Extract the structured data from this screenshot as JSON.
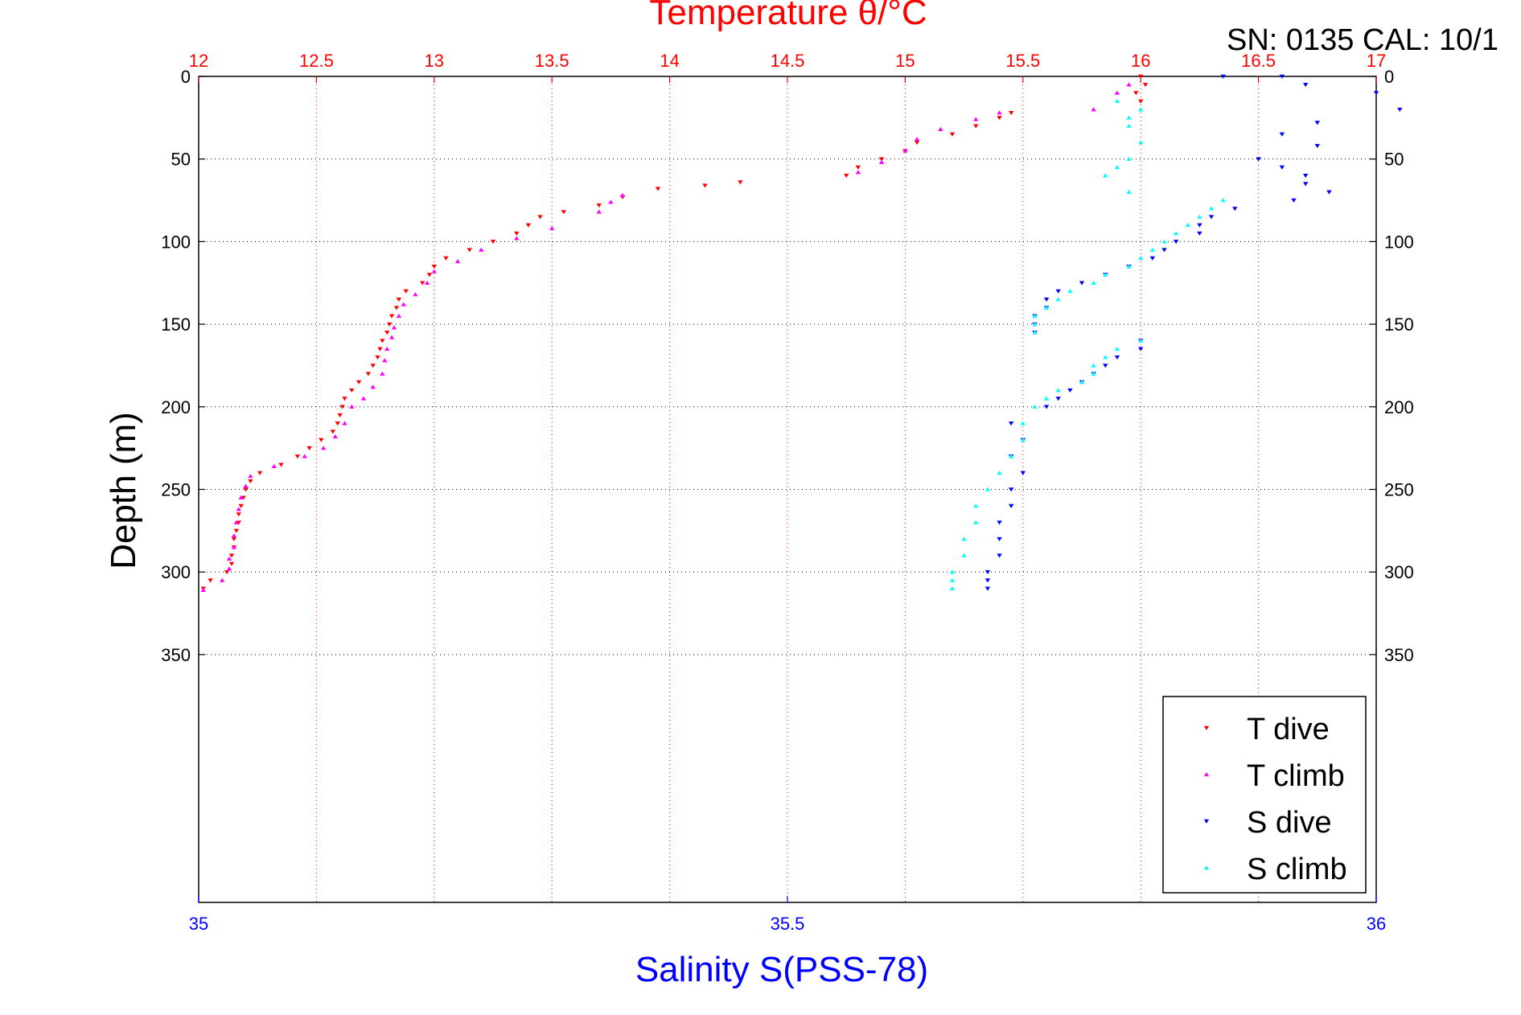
{
  "chart_data": {
    "type": "scatter",
    "title": "Temperature θ/°C",
    "corner_text": "SN: 0135  CAL: 10/1",
    "xlabel_top": "Temperature θ/°C",
    "xlabel_bottom": "Salinity S(PSS-78)",
    "ylabel": "Depth (m)",
    "x_top_range": [
      12,
      17
    ],
    "x_top_ticks": [
      "12",
      "12.5",
      "13",
      "13.5",
      "14",
      "14.5",
      "15",
      "15.5",
      "16",
      "16.5",
      "17"
    ],
    "x_bottom_range": [
      35,
      36
    ],
    "x_bottom_ticks": [
      "35",
      "35.5",
      "36"
    ],
    "y_range": [
      0,
      500
    ],
    "y_reversed": true,
    "y_ticks": [
      "0",
      "50",
      "100",
      "150",
      "200",
      "250",
      "300",
      "350"
    ],
    "grid": "dotted, vertical at temperature ticks, horizontal at depth ticks",
    "legend_placement": "bottom-right",
    "colors": {
      "t_dive": "#ff0000",
      "t_climb": "#ff00ff",
      "s_dive": "#0000ff",
      "s_climb": "#00ffff",
      "axis": "#000000"
    },
    "series": [
      {
        "name": "T dive",
        "axis": "temperature",
        "marker": "triangle-down",
        "color": "#ff0000",
        "points": [
          [
            16.0,
            0
          ],
          [
            16.02,
            5
          ],
          [
            15.98,
            10
          ],
          [
            16.0,
            15
          ],
          [
            15.45,
            22
          ],
          [
            15.4,
            25
          ],
          [
            15.3,
            30
          ],
          [
            15.2,
            35
          ],
          [
            15.05,
            40
          ],
          [
            15.0,
            45
          ],
          [
            14.9,
            50
          ],
          [
            14.8,
            55
          ],
          [
            14.75,
            60
          ],
          [
            14.3,
            64
          ],
          [
            14.15,
            66
          ],
          [
            13.95,
            68
          ],
          [
            13.8,
            73
          ],
          [
            13.7,
            78
          ],
          [
            13.55,
            82
          ],
          [
            13.45,
            85
          ],
          [
            13.4,
            90
          ],
          [
            13.35,
            95
          ],
          [
            13.25,
            100
          ],
          [
            13.15,
            105
          ],
          [
            13.05,
            110
          ],
          [
            13.0,
            115
          ],
          [
            12.98,
            120
          ],
          [
            12.95,
            125
          ],
          [
            12.88,
            130
          ],
          [
            12.85,
            135
          ],
          [
            12.84,
            140
          ],
          [
            12.82,
            145
          ],
          [
            12.81,
            150
          ],
          [
            12.8,
            155
          ],
          [
            12.78,
            160
          ],
          [
            12.77,
            165
          ],
          [
            12.76,
            170
          ],
          [
            12.74,
            175
          ],
          [
            12.72,
            180
          ],
          [
            12.68,
            185
          ],
          [
            12.65,
            190
          ],
          [
            12.62,
            195
          ],
          [
            12.61,
            200
          ],
          [
            12.6,
            205
          ],
          [
            12.59,
            210
          ],
          [
            12.57,
            215
          ],
          [
            12.52,
            220
          ],
          [
            12.47,
            225
          ],
          [
            12.42,
            230
          ],
          [
            12.35,
            235
          ],
          [
            12.26,
            240
          ],
          [
            12.22,
            245
          ],
          [
            12.2,
            250
          ],
          [
            12.19,
            255
          ],
          [
            12.18,
            260
          ],
          [
            12.17,
            265
          ],
          [
            12.17,
            270
          ],
          [
            12.16,
            275
          ],
          [
            12.15,
            280
          ],
          [
            12.15,
            285
          ],
          [
            12.14,
            290
          ],
          [
            12.14,
            295
          ],
          [
            12.12,
            300
          ],
          [
            12.05,
            305
          ],
          [
            12.02,
            310
          ]
        ]
      },
      {
        "name": "T climb",
        "axis": "temperature",
        "marker": "triangle-up",
        "color": "#ff00ff",
        "points": [
          [
            15.95,
            5
          ],
          [
            15.9,
            10
          ],
          [
            15.8,
            20
          ],
          [
            15.4,
            22
          ],
          [
            15.3,
            26
          ],
          [
            15.15,
            32
          ],
          [
            15.05,
            38
          ],
          [
            15.0,
            45
          ],
          [
            14.9,
            52
          ],
          [
            14.8,
            58
          ],
          [
            13.8,
            72
          ],
          [
            13.75,
            76
          ],
          [
            13.7,
            82
          ],
          [
            13.5,
            92
          ],
          [
            13.35,
            98
          ],
          [
            13.2,
            105
          ],
          [
            13.1,
            112
          ],
          [
            13.0,
            118
          ],
          [
            12.97,
            125
          ],
          [
            12.92,
            132
          ],
          [
            12.87,
            138
          ],
          [
            12.85,
            145
          ],
          [
            12.83,
            152
          ],
          [
            12.82,
            158
          ],
          [
            12.8,
            165
          ],
          [
            12.79,
            172
          ],
          [
            12.78,
            180
          ],
          [
            12.74,
            188
          ],
          [
            12.7,
            195
          ],
          [
            12.65,
            200
          ],
          [
            12.62,
            210
          ],
          [
            12.58,
            218
          ],
          [
            12.53,
            225
          ],
          [
            12.45,
            230
          ],
          [
            12.32,
            236
          ],
          [
            12.22,
            242
          ],
          [
            12.2,
            248
          ],
          [
            12.18,
            255
          ],
          [
            12.17,
            262
          ],
          [
            12.16,
            270
          ],
          [
            12.15,
            278
          ],
          [
            12.15,
            285
          ],
          [
            12.13,
            292
          ],
          [
            12.13,
            298
          ],
          [
            12.1,
            305
          ],
          [
            12.02,
            311
          ]
        ]
      },
      {
        "name": "S dive",
        "axis": "salinity",
        "marker": "triangle-down",
        "color": "#0000ff",
        "points": [
          [
            35.87,
            0
          ],
          [
            35.92,
            0
          ],
          [
            35.94,
            5
          ],
          [
            36.0,
            10
          ],
          [
            36.02,
            20
          ],
          [
            35.95,
            28
          ],
          [
            35.92,
            35
          ],
          [
            35.95,
            42
          ],
          [
            35.9,
            50
          ],
          [
            35.92,
            55
          ],
          [
            35.94,
            60
          ],
          [
            35.94,
            65
          ],
          [
            35.96,
            70
          ],
          [
            35.93,
            75
          ],
          [
            35.88,
            80
          ],
          [
            35.86,
            85
          ],
          [
            35.85,
            90
          ],
          [
            35.85,
            95
          ],
          [
            35.83,
            100
          ],
          [
            35.82,
            105
          ],
          [
            35.81,
            110
          ],
          [
            35.79,
            115
          ],
          [
            35.77,
            120
          ],
          [
            35.75,
            125
          ],
          [
            35.73,
            130
          ],
          [
            35.72,
            135
          ],
          [
            35.72,
            140
          ],
          [
            35.71,
            145
          ],
          [
            35.71,
            150
          ],
          [
            35.71,
            155
          ],
          [
            35.8,
            160
          ],
          [
            35.8,
            165
          ],
          [
            35.78,
            170
          ],
          [
            35.77,
            175
          ],
          [
            35.76,
            180
          ],
          [
            35.75,
            185
          ],
          [
            35.74,
            190
          ],
          [
            35.73,
            195
          ],
          [
            35.72,
            200
          ],
          [
            35.69,
            210
          ],
          [
            35.7,
            220
          ],
          [
            35.69,
            230
          ],
          [
            35.7,
            240
          ],
          [
            35.69,
            250
          ],
          [
            35.69,
            260
          ],
          [
            35.68,
            270
          ],
          [
            35.68,
            280
          ],
          [
            35.68,
            290
          ],
          [
            35.67,
            300
          ],
          [
            35.67,
            305
          ],
          [
            35.67,
            310
          ]
        ]
      },
      {
        "name": "S climb",
        "axis": "salinity",
        "marker": "triangle-up",
        "color": "#00ffff",
        "points": [
          [
            35.78,
            15
          ],
          [
            35.8,
            20
          ],
          [
            35.79,
            25
          ],
          [
            35.79,
            30
          ],
          [
            35.8,
            40
          ],
          [
            35.79,
            50
          ],
          [
            35.78,
            55
          ],
          [
            35.77,
            60
          ],
          [
            35.79,
            70
          ],
          [
            35.87,
            75
          ],
          [
            35.86,
            80
          ],
          [
            35.85,
            85
          ],
          [
            35.84,
            90
          ],
          [
            35.83,
            95
          ],
          [
            35.82,
            100
          ],
          [
            35.81,
            105
          ],
          [
            35.8,
            110
          ],
          [
            35.79,
            115
          ],
          [
            35.77,
            120
          ],
          [
            35.76,
            125
          ],
          [
            35.74,
            130
          ],
          [
            35.73,
            135
          ],
          [
            35.72,
            140
          ],
          [
            35.71,
            145
          ],
          [
            35.71,
            150
          ],
          [
            35.71,
            155
          ],
          [
            35.8,
            160
          ],
          [
            35.78,
            165
          ],
          [
            35.77,
            170
          ],
          [
            35.76,
            175
          ],
          [
            35.76,
            180
          ],
          [
            35.75,
            185
          ],
          [
            35.73,
            190
          ],
          [
            35.72,
            195
          ],
          [
            35.71,
            200
          ],
          [
            35.7,
            210
          ],
          [
            35.7,
            220
          ],
          [
            35.69,
            230
          ],
          [
            35.68,
            240
          ],
          [
            35.67,
            250
          ],
          [
            35.66,
            260
          ],
          [
            35.66,
            270
          ],
          [
            35.65,
            280
          ],
          [
            35.65,
            290
          ],
          [
            35.64,
            300
          ],
          [
            35.64,
            305
          ],
          [
            35.64,
            310
          ]
        ]
      }
    ]
  }
}
